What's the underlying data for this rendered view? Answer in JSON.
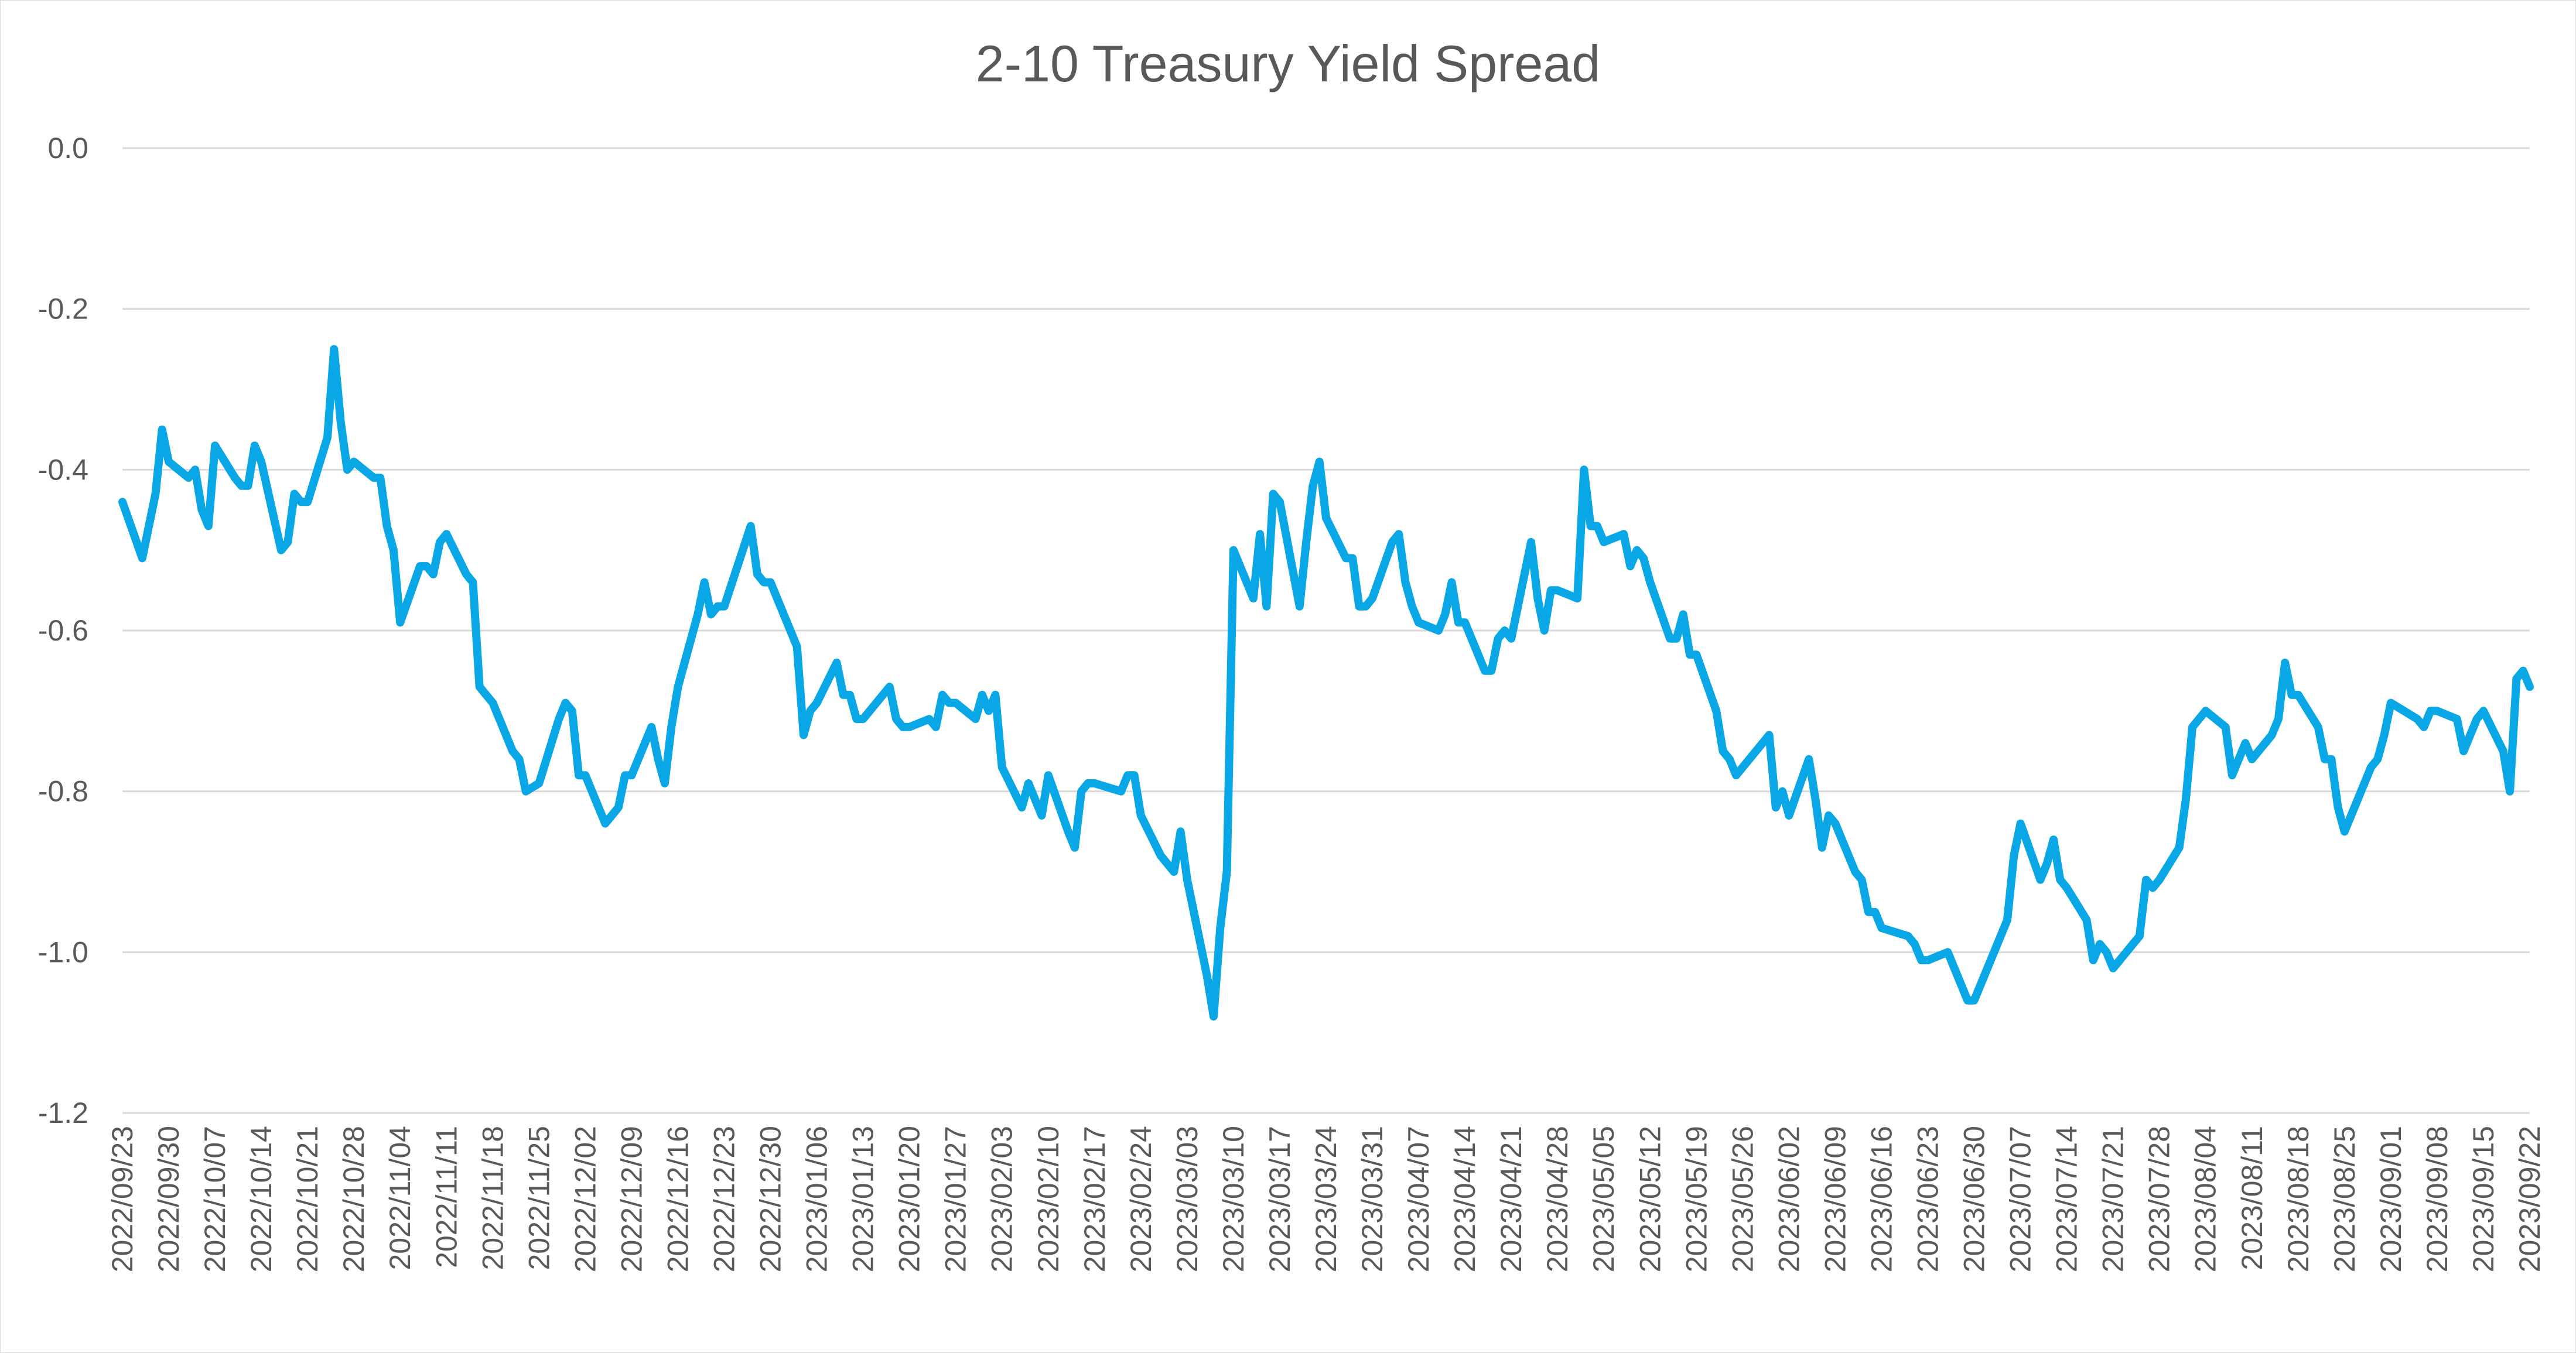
{
  "chart_data": {
    "type": "line",
    "title": "2-10 Treasury Yield Spread",
    "xlabel": "",
    "ylabel": "",
    "ylim": [
      -1.2,
      0.0
    ],
    "yticks": [
      "0.0",
      "-0.2",
      "-0.4",
      "-0.6",
      "-0.8",
      "-1.0",
      "-1.2"
    ],
    "ytick_values": [
      0.0,
      -0.2,
      -0.4,
      -0.6,
      -0.8,
      -1.0,
      -1.2
    ],
    "grid": true,
    "legend": "none",
    "x_tick_labels": [
      "2022/09/23",
      "2022/09/30",
      "2022/10/07",
      "2022/10/14",
      "2022/10/21",
      "2022/10/28",
      "2022/11/04",
      "2022/11/11",
      "2022/11/18",
      "2022/11/25",
      "2022/12/02",
      "2022/12/09",
      "2022/12/16",
      "2022/12/23",
      "2022/12/30",
      "2023/01/06",
      "2023/01/13",
      "2023/01/20",
      "2023/01/27",
      "2023/02/03",
      "2023/02/10",
      "2023/02/17",
      "2023/02/24",
      "2023/03/03",
      "2023/03/10",
      "2023/03/17",
      "2023/03/24",
      "2023/03/31",
      "2023/04/07",
      "2023/04/14",
      "2023/04/21",
      "2023/04/28",
      "2023/05/05",
      "2023/05/12",
      "2023/05/19",
      "2023/05/26",
      "2023/06/02",
      "2023/06/09",
      "2023/06/16",
      "2023/06/23",
      "2023/06/30",
      "2023/07/07",
      "2023/07/14",
      "2023/07/21",
      "2023/07/28",
      "2023/08/04",
      "2023/08/11",
      "2023/08/18",
      "2023/08/25",
      "2023/09/01",
      "2023/09/08",
      "2023/09/15",
      "2023/09/22"
    ],
    "series": [
      {
        "color": "#0aa7e6",
        "points": [
          [
            "2022/09/23",
            -0.44
          ],
          [
            "2022/09/26",
            -0.51
          ],
          [
            "2022/09/28",
            -0.43
          ],
          [
            "2022/09/29",
            -0.35
          ],
          [
            "2022/09/30",
            -0.39
          ],
          [
            "2022/10/03",
            -0.41
          ],
          [
            "2022/10/04",
            -0.4
          ],
          [
            "2022/10/05",
            -0.45
          ],
          [
            "2022/10/06",
            -0.47
          ],
          [
            "2022/10/07",
            -0.37
          ],
          [
            "2022/10/10",
            -0.41
          ],
          [
            "2022/10/11",
            -0.42
          ],
          [
            "2022/10/12",
            -0.42
          ],
          [
            "2022/10/13",
            -0.37
          ],
          [
            "2022/10/14",
            -0.39
          ],
          [
            "2022/10/17",
            -0.5
          ],
          [
            "2022/10/18",
            -0.49
          ],
          [
            "2022/10/19",
            -0.43
          ],
          [
            "2022/10/20",
            -0.44
          ],
          [
            "2022/10/21",
            -0.44
          ],
          [
            "2022/10/24",
            -0.36
          ],
          [
            "2022/10/25",
            -0.25
          ],
          [
            "2022/10/26",
            -0.34
          ],
          [
            "2022/10/27",
            -0.4
          ],
          [
            "2022/10/28",
            -0.39
          ],
          [
            "2022/10/31",
            -0.41
          ],
          [
            "2022/11/01",
            -0.41
          ],
          [
            "2022/11/02",
            -0.47
          ],
          [
            "2022/11/03",
            -0.5
          ],
          [
            "2022/11/04",
            -0.59
          ],
          [
            "2022/11/07",
            -0.52
          ],
          [
            "2022/11/08",
            -0.52
          ],
          [
            "2022/11/09",
            -0.53
          ],
          [
            "2022/11/10",
            -0.49
          ],
          [
            "2022/11/11",
            -0.48
          ],
          [
            "2022/11/14",
            -0.53
          ],
          [
            "2022/11/15",
            -0.54
          ],
          [
            "2022/11/16",
            -0.67
          ],
          [
            "2022/11/17",
            -0.68
          ],
          [
            "2022/11/18",
            -0.69
          ],
          [
            "2022/11/21",
            -0.75
          ],
          [
            "2022/11/22",
            -0.76
          ],
          [
            "2022/11/23",
            -0.8
          ],
          [
            "2022/11/25",
            -0.79
          ],
          [
            "2022/11/28",
            -0.71
          ],
          [
            "2022/11/29",
            -0.69
          ],
          [
            "2022/11/30",
            -0.7
          ],
          [
            "2022/12/01",
            -0.78
          ],
          [
            "2022/12/02",
            -0.78
          ],
          [
            "2022/12/05",
            -0.84
          ],
          [
            "2022/12/06",
            -0.83
          ],
          [
            "2022/12/07",
            -0.82
          ],
          [
            "2022/12/08",
            -0.78
          ],
          [
            "2022/12/09",
            -0.78
          ],
          [
            "2022/12/12",
            -0.72
          ],
          [
            "2022/12/13",
            -0.76
          ],
          [
            "2022/12/14",
            -0.79
          ],
          [
            "2022/12/15",
            -0.72
          ],
          [
            "2022/12/16",
            -0.67
          ],
          [
            "2022/12/19",
            -0.58
          ],
          [
            "2022/12/20",
            -0.54
          ],
          [
            "2022/12/21",
            -0.58
          ],
          [
            "2022/12/22",
            -0.57
          ],
          [
            "2022/12/23",
            -0.57
          ],
          [
            "2022/12/27",
            -0.47
          ],
          [
            "2022/12/28",
            -0.53
          ],
          [
            "2022/12/29",
            -0.54
          ],
          [
            "2022/12/30",
            -0.54
          ],
          [
            "2023/01/03",
            -0.62
          ],
          [
            "2023/01/04",
            -0.73
          ],
          [
            "2023/01/05",
            -0.7
          ],
          [
            "2023/01/06",
            -0.69
          ],
          [
            "2023/01/09",
            -0.64
          ],
          [
            "2023/01/10",
            -0.68
          ],
          [
            "2023/01/11",
            -0.68
          ],
          [
            "2023/01/12",
            -0.71
          ],
          [
            "2023/01/13",
            -0.71
          ],
          [
            "2023/01/17",
            -0.67
          ],
          [
            "2023/01/18",
            -0.71
          ],
          [
            "2023/01/19",
            -0.72
          ],
          [
            "2023/01/20",
            -0.72
          ],
          [
            "2023/01/23",
            -0.71
          ],
          [
            "2023/01/24",
            -0.72
          ],
          [
            "2023/01/25",
            -0.68
          ],
          [
            "2023/01/26",
            -0.69
          ],
          [
            "2023/01/27",
            -0.69
          ],
          [
            "2023/01/30",
            -0.71
          ],
          [
            "2023/01/31",
            -0.68
          ],
          [
            "2023/02/01",
            -0.7
          ],
          [
            "2023/02/02",
            -0.68
          ],
          [
            "2023/02/03",
            -0.77
          ],
          [
            "2023/02/06",
            -0.82
          ],
          [
            "2023/02/07",
            -0.79
          ],
          [
            "2023/02/08",
            -0.81
          ],
          [
            "2023/02/09",
            -0.83
          ],
          [
            "2023/02/10",
            -0.78
          ],
          [
            "2023/02/13",
            -0.85
          ],
          [
            "2023/02/14",
            -0.87
          ],
          [
            "2023/02/15",
            -0.8
          ],
          [
            "2023/02/16",
            -0.79
          ],
          [
            "2023/02/17",
            -0.79
          ],
          [
            "2023/02/21",
            -0.8
          ],
          [
            "2023/02/22",
            -0.78
          ],
          [
            "2023/02/23",
            -0.78
          ],
          [
            "2023/02/24",
            -0.83
          ],
          [
            "2023/02/27",
            -0.88
          ],
          [
            "2023/02/28",
            -0.89
          ],
          [
            "2023/03/01",
            -0.9
          ],
          [
            "2023/03/02",
            -0.85
          ],
          [
            "2023/03/03",
            -0.91
          ],
          [
            "2023/03/06",
            -1.03
          ],
          [
            "2023/03/07",
            -1.08
          ],
          [
            "2023/03/08",
            -0.97
          ],
          [
            "2023/03/09",
            -0.9
          ],
          [
            "2023/03/10",
            -0.5
          ],
          [
            "2023/03/13",
            -0.56
          ],
          [
            "2023/03/14",
            -0.48
          ],
          [
            "2023/03/15",
            -0.57
          ],
          [
            "2023/03/16",
            -0.43
          ],
          [
            "2023/03/17",
            -0.44
          ],
          [
            "2023/03/20",
            -0.57
          ],
          [
            "2023/03/21",
            -0.49
          ],
          [
            "2023/03/22",
            -0.42
          ],
          [
            "2023/03/23",
            -0.39
          ],
          [
            "2023/03/24",
            -0.46
          ],
          [
            "2023/03/27",
            -0.51
          ],
          [
            "2023/03/28",
            -0.51
          ],
          [
            "2023/03/29",
            -0.57
          ],
          [
            "2023/03/30",
            -0.57
          ],
          [
            "2023/03/31",
            -0.56
          ],
          [
            "2023/04/03",
            -0.49
          ],
          [
            "2023/04/04",
            -0.48
          ],
          [
            "2023/04/05",
            -0.54
          ],
          [
            "2023/04/06",
            -0.57
          ],
          [
            "2023/04/07",
            -0.59
          ],
          [
            "2023/04/10",
            -0.6
          ],
          [
            "2023/04/11",
            -0.58
          ],
          [
            "2023/04/12",
            -0.54
          ],
          [
            "2023/04/13",
            -0.59
          ],
          [
            "2023/04/14",
            -0.59
          ],
          [
            "2023/04/17",
            -0.65
          ],
          [
            "2023/04/18",
            -0.65
          ],
          [
            "2023/04/19",
            -0.61
          ],
          [
            "2023/04/20",
            -0.6
          ],
          [
            "2023/04/21",
            -0.61
          ],
          [
            "2023/04/24",
            -0.49
          ],
          [
            "2023/04/25",
            -0.56
          ],
          [
            "2023/04/26",
            -0.6
          ],
          [
            "2023/04/27",
            -0.55
          ],
          [
            "2023/04/28",
            -0.55
          ],
          [
            "2023/05/01",
            -0.56
          ],
          [
            "2023/05/02",
            -0.4
          ],
          [
            "2023/05/03",
            -0.47
          ],
          [
            "2023/05/04",
            -0.47
          ],
          [
            "2023/05/05",
            -0.49
          ],
          [
            "2023/05/08",
            -0.48
          ],
          [
            "2023/05/09",
            -0.52
          ],
          [
            "2023/05/10",
            -0.5
          ],
          [
            "2023/05/11",
            -0.51
          ],
          [
            "2023/05/12",
            -0.54
          ],
          [
            "2023/05/15",
            -0.61
          ],
          [
            "2023/05/16",
            -0.61
          ],
          [
            "2023/05/17",
            -0.58
          ],
          [
            "2023/05/18",
            -0.63
          ],
          [
            "2023/05/19",
            -0.63
          ],
          [
            "2023/05/22",
            -0.7
          ],
          [
            "2023/05/23",
            -0.75
          ],
          [
            "2023/05/24",
            -0.76
          ],
          [
            "2023/05/25",
            -0.78
          ],
          [
            "2023/05/26",
            -0.77
          ],
          [
            "2023/05/30",
            -0.73
          ],
          [
            "2023/05/31",
            -0.82
          ],
          [
            "2023/06/01",
            -0.8
          ],
          [
            "2023/06/02",
            -0.83
          ],
          [
            "2023/06/05",
            -0.76
          ],
          [
            "2023/06/06",
            -0.81
          ],
          [
            "2023/06/07",
            -0.87
          ],
          [
            "2023/06/08",
            -0.83
          ],
          [
            "2023/06/09",
            -0.84
          ],
          [
            "2023/06/12",
            -0.9
          ],
          [
            "2023/06/13",
            -0.91
          ],
          [
            "2023/06/14",
            -0.95
          ],
          [
            "2023/06/15",
            -0.95
          ],
          [
            "2023/06/16",
            -0.97
          ],
          [
            "2023/06/20",
            -0.98
          ],
          [
            "2023/06/21",
            -0.99
          ],
          [
            "2023/06/22",
            -1.01
          ],
          [
            "2023/06/23",
            -1.01
          ],
          [
            "2023/06/26",
            -1.0
          ],
          [
            "2023/06/27",
            -1.02
          ],
          [
            "2023/06/28",
            -1.04
          ],
          [
            "2023/06/29",
            -1.06
          ],
          [
            "2023/06/30",
            -1.06
          ],
          [
            "2023/07/03",
            -1.0
          ],
          [
            "2023/07/05",
            -0.96
          ],
          [
            "2023/07/06",
            -0.88
          ],
          [
            "2023/07/07",
            -0.84
          ],
          [
            "2023/07/10",
            -0.91
          ],
          [
            "2023/07/11",
            -0.89
          ],
          [
            "2023/07/12",
            -0.86
          ],
          [
            "2023/07/13",
            -0.91
          ],
          [
            "2023/07/14",
            -0.92
          ],
          [
            "2023/07/17",
            -0.96
          ],
          [
            "2023/07/18",
            -1.01
          ],
          [
            "2023/07/19",
            -0.99
          ],
          [
            "2023/07/20",
            -1.0
          ],
          [
            "2023/07/21",
            -1.02
          ],
          [
            "2023/07/24",
            -0.99
          ],
          [
            "2023/07/25",
            -0.98
          ],
          [
            "2023/07/26",
            -0.91
          ],
          [
            "2023/07/27",
            -0.92
          ],
          [
            "2023/07/28",
            -0.91
          ],
          [
            "2023/07/31",
            -0.87
          ],
          [
            "2023/08/01",
            -0.81
          ],
          [
            "2023/08/02",
            -0.72
          ],
          [
            "2023/08/03",
            -0.71
          ],
          [
            "2023/08/04",
            -0.7
          ],
          [
            "2023/08/07",
            -0.72
          ],
          [
            "2023/08/08",
            -0.78
          ],
          [
            "2023/08/09",
            -0.76
          ],
          [
            "2023/08/10",
            -0.74
          ],
          [
            "2023/08/11",
            -0.76
          ],
          [
            "2023/08/14",
            -0.73
          ],
          [
            "2023/08/15",
            -0.71
          ],
          [
            "2023/08/16",
            -0.64
          ],
          [
            "2023/08/17",
            -0.68
          ],
          [
            "2023/08/18",
            -0.68
          ],
          [
            "2023/08/21",
            -0.72
          ],
          [
            "2023/08/22",
            -0.76
          ],
          [
            "2023/08/23",
            -0.76
          ],
          [
            "2023/08/24",
            -0.82
          ],
          [
            "2023/08/25",
            -0.85
          ],
          [
            "2023/08/28",
            -0.79
          ],
          [
            "2023/08/29",
            -0.77
          ],
          [
            "2023/08/30",
            -0.76
          ],
          [
            "2023/08/31",
            -0.73
          ],
          [
            "2023/09/01",
            -0.69
          ],
          [
            "2023/09/05",
            -0.71
          ],
          [
            "2023/09/06",
            -0.72
          ],
          [
            "2023/09/07",
            -0.7
          ],
          [
            "2023/09/08",
            -0.7
          ],
          [
            "2023/09/11",
            -0.71
          ],
          [
            "2023/09/12",
            -0.75
          ],
          [
            "2023/09/13",
            -0.73
          ],
          [
            "2023/09/14",
            -0.71
          ],
          [
            "2023/09/15",
            -0.7
          ],
          [
            "2023/09/18",
            -0.75
          ],
          [
            "2023/09/19",
            -0.8
          ],
          [
            "2023/09/20",
            -0.66
          ],
          [
            "2023/09/21",
            -0.65
          ],
          [
            "2023/09/22",
            -0.67
          ]
        ]
      }
    ]
  }
}
